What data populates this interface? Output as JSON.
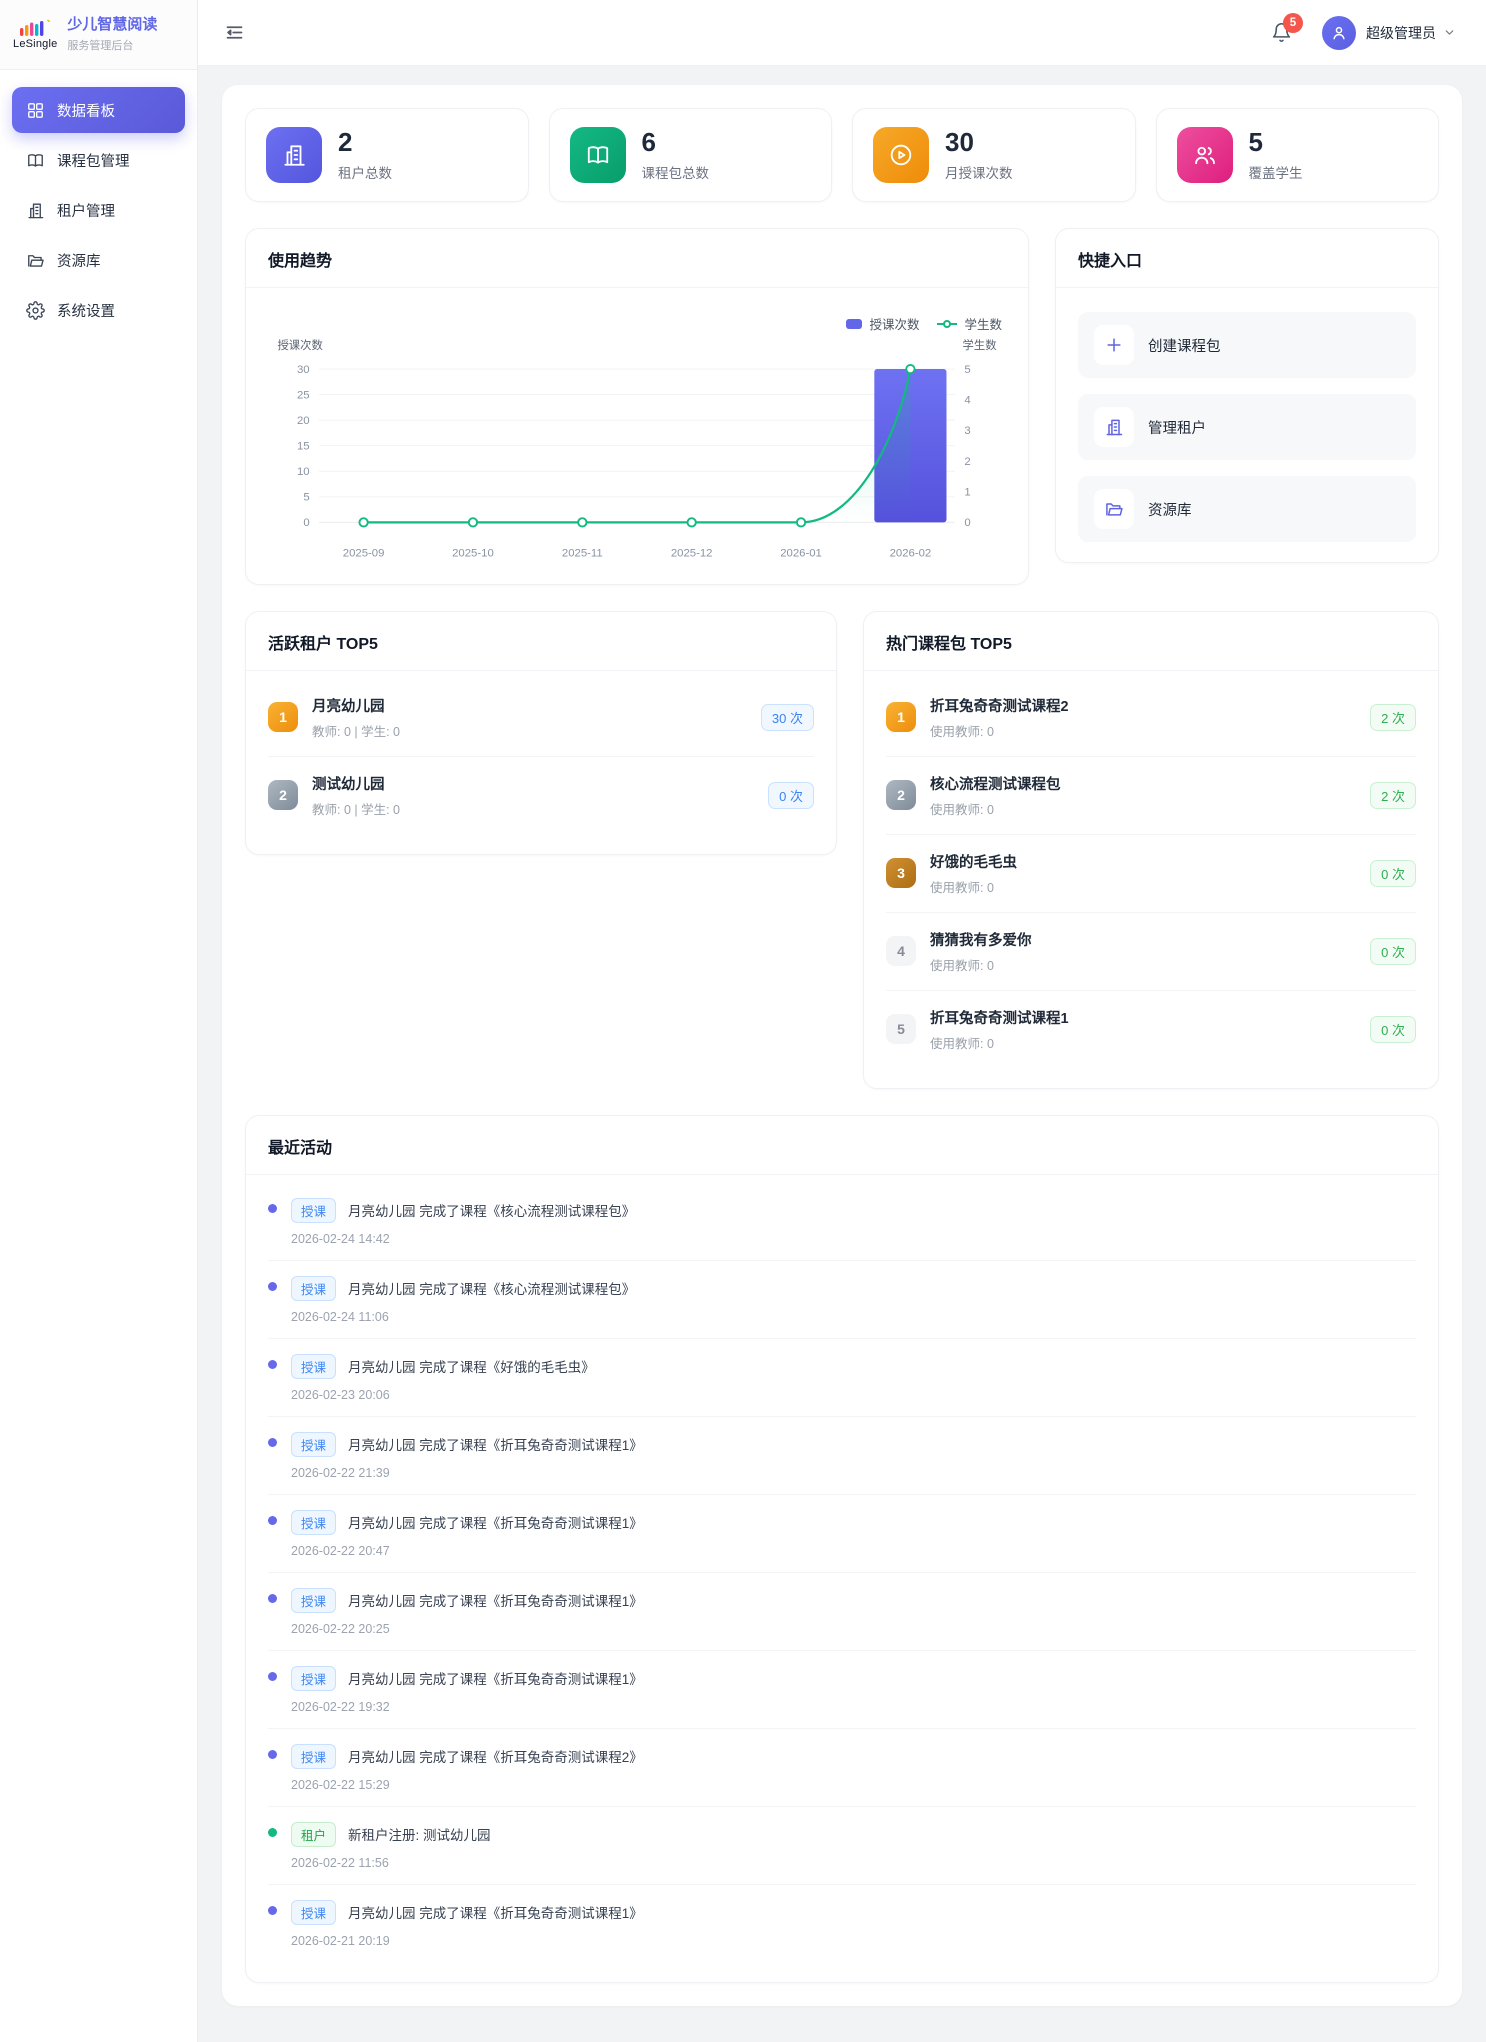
{
  "app": {
    "brand_name": "LeSingle",
    "brand_title": "少儿智慧阅读",
    "brand_subtitle": "服务管理后台"
  },
  "sidebar": {
    "items": [
      {
        "label": "数据看板",
        "icon": "dashboard",
        "active": true
      },
      {
        "label": "课程包管理",
        "icon": "book",
        "active": false
      },
      {
        "label": "租户管理",
        "icon": "building",
        "active": false
      },
      {
        "label": "资源库",
        "icon": "folder",
        "active": false
      },
      {
        "label": "系统设置",
        "icon": "gear",
        "active": false
      }
    ]
  },
  "header": {
    "notification_count": "5",
    "username": "超级管理员"
  },
  "stats": [
    {
      "value": "2",
      "label": "租户总数",
      "icon": "building",
      "gradient": [
        "#6d70f1",
        "#5356dd"
      ]
    },
    {
      "value": "6",
      "label": "课程包总数",
      "icon": "book",
      "gradient": [
        "#14b885",
        "#089e6a"
      ]
    },
    {
      "value": "30",
      "label": "月授课次数",
      "icon": "play",
      "gradient": [
        "#f7a928",
        "#ee8c0a"
      ]
    },
    {
      "value": "5",
      "label": "覆盖学生",
      "icon": "users",
      "gradient": [
        "#ee4f9e",
        "#de1e7e"
      ]
    }
  ],
  "chart_card": {
    "title": "使用趋势"
  },
  "chart_data": {
    "type": "bar",
    "title": "使用趋势",
    "categories": [
      "2025-09",
      "2025-10",
      "2025-11",
      "2025-12",
      "2026-01",
      "2026-02"
    ],
    "series": [
      {
        "name": "授课次数",
        "type": "bar",
        "axis": "left",
        "color": "#6266e8",
        "gradient": [
          "#6e72f2",
          "#5551dc"
        ],
        "values": [
          0,
          0,
          0,
          0,
          0,
          30
        ]
      },
      {
        "name": "学生数",
        "type": "line",
        "axis": "right",
        "color": "#12b981",
        "values": [
          0,
          0,
          0,
          0,
          0,
          5
        ]
      }
    ],
    "left_axis": {
      "title": "授课次数",
      "min": 0,
      "max": 30,
      "ticks": [
        0,
        5,
        10,
        15,
        20,
        25,
        30
      ]
    },
    "right_axis": {
      "title": "学生数",
      "min": 0,
      "max": 5,
      "ticks": [
        0,
        1,
        2,
        3,
        4,
        5
      ]
    },
    "grid": true,
    "legend_position": "top-right"
  },
  "quick": {
    "title": "快捷入口",
    "items": [
      {
        "label": "创建课程包",
        "icon": "plus"
      },
      {
        "label": "管理租户",
        "icon": "building"
      },
      {
        "label": "资源库",
        "icon": "folder"
      }
    ]
  },
  "tenant_top": {
    "title": "活跃租户 TOP5",
    "items": [
      {
        "rank": "1",
        "tier": "gold",
        "name": "月亮幼儿园",
        "meta": "教师: 0 | 学生: 0",
        "count": "30 次",
        "pill": "blue"
      },
      {
        "rank": "2",
        "tier": "silver",
        "name": "测试幼儿园",
        "meta": "教师: 0 | 学生: 0",
        "count": "0 次",
        "pill": "blue"
      }
    ]
  },
  "package_top": {
    "title": "热门课程包 TOP5",
    "items": [
      {
        "rank": "1",
        "tier": "gold",
        "name": "折耳兔奇奇测试课程2",
        "meta": "使用教师: 0",
        "count": "2 次",
        "pill": "green"
      },
      {
        "rank": "2",
        "tier": "silver",
        "name": "核心流程测试课程包",
        "meta": "使用教师: 0",
        "count": "2 次",
        "pill": "green"
      },
      {
        "rank": "3",
        "tier": "bronze",
        "name": "好饿的毛毛虫",
        "meta": "使用教师: 0",
        "count": "0 次",
        "pill": "green"
      },
      {
        "rank": "4",
        "tier": "plain",
        "name": "猜猜我有多爱你",
        "meta": "使用教师: 0",
        "count": "0 次",
        "pill": "green"
      },
      {
        "rank": "5",
        "tier": "plain",
        "name": "折耳兔奇奇测试课程1",
        "meta": "使用教师: 0",
        "count": "0 次",
        "pill": "green"
      }
    ]
  },
  "activity": {
    "title": "最近活动",
    "items": [
      {
        "tag": "授课",
        "type": "blue",
        "text": "月亮幼儿园 完成了课程《核心流程测试课程包》",
        "time": "2026-02-24 14:42"
      },
      {
        "tag": "授课",
        "type": "blue",
        "text": "月亮幼儿园 完成了课程《核心流程测试课程包》",
        "time": "2026-02-24 11:06"
      },
      {
        "tag": "授课",
        "type": "blue",
        "text": "月亮幼儿园 完成了课程《好饿的毛毛虫》",
        "time": "2026-02-23 20:06"
      },
      {
        "tag": "授课",
        "type": "blue",
        "text": "月亮幼儿园 完成了课程《折耳兔奇奇测试课程1》",
        "time": "2026-02-22 21:39"
      },
      {
        "tag": "授课",
        "type": "blue",
        "text": "月亮幼儿园 完成了课程《折耳兔奇奇测试课程1》",
        "time": "2026-02-22 20:47"
      },
      {
        "tag": "授课",
        "type": "blue",
        "text": "月亮幼儿园 完成了课程《折耳兔奇奇测试课程1》",
        "time": "2026-02-22 20:25"
      },
      {
        "tag": "授课",
        "type": "blue",
        "text": "月亮幼儿园 完成了课程《折耳兔奇奇测试课程1》",
        "time": "2026-02-22 19:32"
      },
      {
        "tag": "授课",
        "type": "blue",
        "text": "月亮幼儿园 完成了课程《折耳兔奇奇测试课程2》",
        "time": "2026-02-22 15:29"
      },
      {
        "tag": "租户",
        "type": "green",
        "text": "新租户注册: 测试幼儿园",
        "time": "2026-02-22 11:56"
      },
      {
        "tag": "授课",
        "type": "blue",
        "text": "月亮幼儿园 完成了课程《折耳兔奇奇测试课程1》",
        "time": "2026-02-21 20:19"
      }
    ]
  },
  "colors": {
    "accent": "#6366f1",
    "line": "#12b981",
    "badge_red": "#f5554a",
    "page_bg": "#f2f3f5"
  }
}
